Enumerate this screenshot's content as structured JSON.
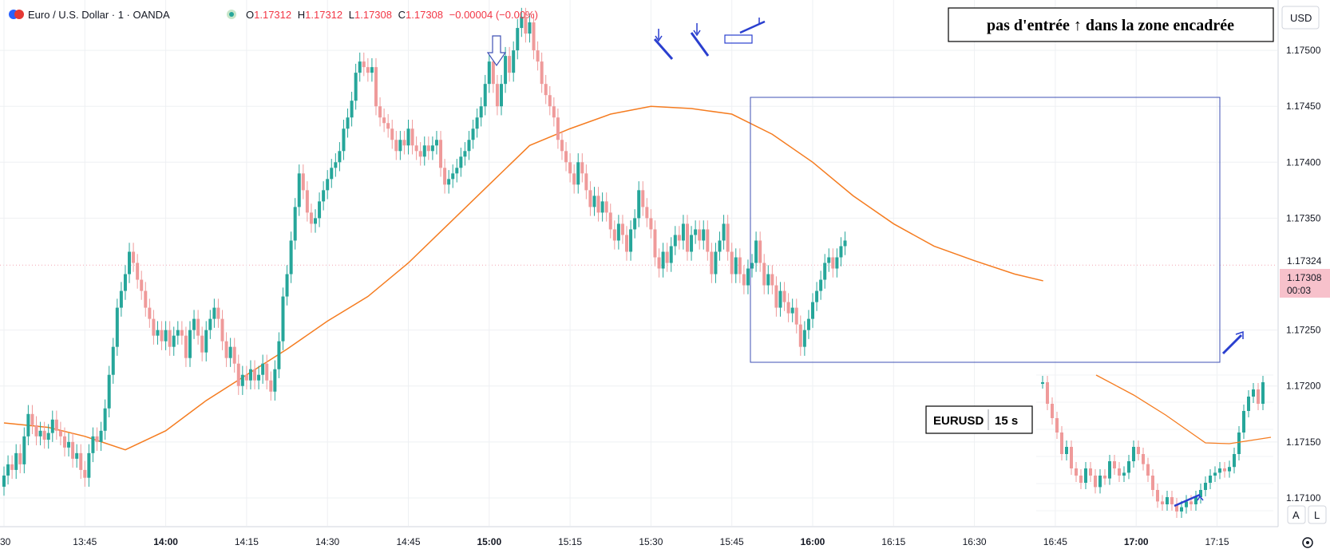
{
  "header": {
    "instrument": "Euro / U.S. Dollar · 1 · OANDA",
    "ohlc": {
      "o_label": "O",
      "o": "1.17312",
      "h_label": "H",
      "h": "1.17312",
      "l_label": "L",
      "l": "1.17308",
      "c_label": "C",
      "c": "1.17308",
      "change": "−0.00004 (−0.00%)"
    }
  },
  "toolbar": {
    "currency": "USD",
    "auto_label": "A",
    "log_label": "L"
  },
  "price_axis": {
    "ticks": [
      "1.17500",
      "1.17450",
      "1.17400",
      "1.17350",
      "1.17250",
      "1.17200",
      "1.17150",
      "1.17100"
    ],
    "tick_values": [
      1.175,
      1.1745,
      1.174,
      1.1735,
      1.1725,
      1.172,
      1.1715,
      1.171
    ],
    "bid_label": "1.17324",
    "last_label": "1.17308",
    "countdown": "00:03"
  },
  "time_axis": {
    "ticks": [
      {
        "label": ":30",
        "bold": false
      },
      {
        "label": "13:45",
        "bold": false
      },
      {
        "label": "14:00",
        "bold": true
      },
      {
        "label": "14:15",
        "bold": false
      },
      {
        "label": "14:30",
        "bold": false
      },
      {
        "label": "14:45",
        "bold": false
      },
      {
        "label": "15:00",
        "bold": true
      },
      {
        "label": "15:15",
        "bold": false
      },
      {
        "label": "15:30",
        "bold": false
      },
      {
        "label": "15:45",
        "bold": false
      },
      {
        "label": "16:00",
        "bold": true
      },
      {
        "label": "16:15",
        "bold": false
      },
      {
        "label": "16:30",
        "bold": false
      },
      {
        "label": "16:45",
        "bold": false
      },
      {
        "label": "17:00",
        "bold": true
      },
      {
        "label": "17:15",
        "bold": false
      }
    ]
  },
  "annotations": {
    "note": "pas d'entrée ↑ dans la zone encadrée",
    "inset_symbol": "EURUSD",
    "inset_interval": "15 s"
  },
  "colors": {
    "up": "#26a69a",
    "down": "#ef9a9a",
    "ma": "#f57c20",
    "box": "#3f51b5",
    "arrow": "#2a3fcf",
    "grid": "#eef0f3",
    "last_price_bg": "#f7c1cb",
    "bid_color": "#f4a6b4"
  },
  "chart_data": {
    "type": "candlestick",
    "x_labels": [
      ":30",
      "13:45",
      "14:00",
      "14:15",
      "14:30",
      "14:45",
      "15:00",
      "15:15",
      "15:30",
      "15:45",
      "16:00",
      "16:15",
      "16:30",
      "16:45",
      "17:00",
      "17:15"
    ],
    "ylim": [
      1.17075,
      1.17545
    ],
    "moving_average": [
      [
        0,
        1.17167
      ],
      [
        0.55,
        1.17163
      ],
      [
        1,
        1.17155
      ],
      [
        1.5,
        1.17143
      ],
      [
        2,
        1.1716
      ],
      [
        2.5,
        1.17187
      ],
      [
        3,
        1.1721
      ],
      [
        3.5,
        1.17233
      ],
      [
        4,
        1.17258
      ],
      [
        4.5,
        1.1728
      ],
      [
        5,
        1.1731
      ],
      [
        5.5,
        1.17345
      ],
      [
        6,
        1.1738
      ],
      [
        6.5,
        1.17415
      ],
      [
        7,
        1.1743
      ],
      [
        7.5,
        1.17443
      ],
      [
        8,
        1.1745
      ],
      [
        8.5,
        1.17448
      ],
      [
        9,
        1.17443
      ],
      [
        9.5,
        1.17425
      ],
      [
        10,
        1.174
      ],
      [
        10.5,
        1.1737
      ],
      [
        11,
        1.17345
      ],
      [
        11.5,
        1.17325
      ],
      [
        12,
        1.17312
      ],
      [
        12.5,
        1.173
      ],
      [
        12.85,
        1.17294
      ]
    ],
    "candles": [
      [
        0,
        1.1711,
        1.1712
      ],
      [
        0.05,
        1.1712,
        1.1713
      ],
      [
        0.1,
        1.1713,
        1.17125
      ],
      [
        0.15,
        1.17125,
        1.1714
      ],
      [
        0.2,
        1.1714,
        1.1713
      ],
      [
        0.25,
        1.1713,
        1.17155
      ],
      [
        0.3,
        1.17155,
        1.17175
      ],
      [
        0.35,
        1.17175,
        1.17165
      ],
      [
        0.4,
        1.17165,
        1.17155
      ],
      [
        0.45,
        1.17155,
        1.1716
      ],
      [
        0.5,
        1.1716,
        1.17152
      ],
      [
        0.55,
        1.17152,
        1.17158
      ],
      [
        0.6,
        1.17158,
        1.1717
      ],
      [
        0.65,
        1.1717,
        1.1716
      ],
      [
        0.7,
        1.1716,
        1.17155
      ],
      [
        0.75,
        1.17155,
        1.17145
      ],
      [
        0.8,
        1.17145,
        1.1715
      ],
      [
        0.85,
        1.1715,
        1.17135
      ],
      [
        0.9,
        1.17135,
        1.1714
      ],
      [
        0.95,
        1.1714,
        1.17125
      ],
      [
        1.0,
        1.17125,
        1.17118
      ],
      [
        1.05,
        1.17118,
        1.1714
      ],
      [
        1.1,
        1.1714,
        1.17155
      ],
      [
        1.15,
        1.17155,
        1.1715
      ],
      [
        1.2,
        1.1715,
        1.1716
      ],
      [
        1.25,
        1.1716,
        1.1718
      ],
      [
        1.3,
        1.1718,
        1.1721
      ],
      [
        1.35,
        1.1721,
        1.17235
      ],
      [
        1.4,
        1.17235,
        1.1727
      ],
      [
        1.45,
        1.1727,
        1.17285
      ],
      [
        1.5,
        1.17285,
        1.173
      ],
      [
        1.55,
        1.173,
        1.1732
      ],
      [
        1.6,
        1.1732,
        1.1731
      ],
      [
        1.65,
        1.1731,
        1.17295
      ],
      [
        1.7,
        1.17295,
        1.17285
      ],
      [
        1.75,
        1.17285,
        1.1727
      ],
      [
        1.8,
        1.1727,
        1.1726
      ],
      [
        1.85,
        1.1726,
        1.17245
      ],
      [
        1.9,
        1.17245,
        1.1725
      ],
      [
        1.95,
        1.1725,
        1.1724
      ],
      [
        2.0,
        1.1724,
        1.1725
      ],
      [
        2.05,
        1.1725,
        1.17235
      ],
      [
        2.1,
        1.17235,
        1.17245
      ],
      [
        2.15,
        1.17245,
        1.1725
      ],
      [
        2.2,
        1.1725,
        1.17245
      ],
      [
        2.25,
        1.17245,
        1.17225
      ],
      [
        2.3,
        1.17225,
        1.1725
      ],
      [
        2.35,
        1.1725,
        1.1726
      ],
      [
        2.4,
        1.1726,
        1.17245
      ],
      [
        2.45,
        1.17245,
        1.1723
      ],
      [
        2.5,
        1.1723,
        1.1725
      ],
      [
        2.55,
        1.1725,
        1.1726
      ],
      [
        2.6,
        1.1726,
        1.1727
      ],
      [
        2.65,
        1.1727,
        1.1726
      ],
      [
        2.7,
        1.1726,
        1.1724
      ],
      [
        2.75,
        1.1724,
        1.17225
      ],
      [
        2.8,
        1.17225,
        1.17235
      ],
      [
        2.85,
        1.17235,
        1.1722
      ],
      [
        2.9,
        1.1722,
        1.172
      ],
      [
        2.95,
        1.172,
        1.1721
      ],
      [
        3.0,
        1.1721,
        1.17205
      ],
      [
        3.05,
        1.17205,
        1.17215
      ],
      [
        3.1,
        1.17215,
        1.17205
      ],
      [
        3.15,
        1.17205,
        1.1721
      ],
      [
        3.2,
        1.1721,
        1.1722
      ],
      [
        3.25,
        1.1722,
        1.17205
      ],
      [
        3.3,
        1.17205,
        1.17195
      ],
      [
        3.35,
        1.17195,
        1.17215
      ],
      [
        3.4,
        1.17215,
        1.1724
      ],
      [
        3.45,
        1.1724,
        1.1728
      ],
      [
        3.5,
        1.1728,
        1.173
      ],
      [
        3.55,
        1.173,
        1.1733
      ],
      [
        3.6,
        1.1733,
        1.1736
      ],
      [
        3.65,
        1.1736,
        1.1739
      ],
      [
        3.7,
        1.1739,
        1.17375
      ],
      [
        3.75,
        1.17375,
        1.17355
      ],
      [
        3.8,
        1.17355,
        1.17345
      ],
      [
        3.85,
        1.17345,
        1.1735
      ],
      [
        3.9,
        1.1735,
        1.17365
      ],
      [
        3.95,
        1.17365,
        1.17375
      ],
      [
        4.0,
        1.17375,
        1.17385
      ],
      [
        4.05,
        1.17385,
        1.17395
      ],
      [
        4.1,
        1.17395,
        1.174
      ],
      [
        4.15,
        1.174,
        1.1741
      ],
      [
        4.2,
        1.1741,
        1.1743
      ],
      [
        4.25,
        1.1743,
        1.1744
      ],
      [
        4.3,
        1.1744,
        1.17455
      ],
      [
        4.35,
        1.17455,
        1.1748
      ],
      [
        4.4,
        1.1748,
        1.1749
      ],
      [
        4.45,
        1.1749,
        1.17485
      ],
      [
        4.5,
        1.17485,
        1.1748
      ],
      [
        4.55,
        1.1748,
        1.17485
      ],
      [
        4.6,
        1.17485,
        1.1745
      ],
      [
        4.65,
        1.1745,
        1.1744
      ],
      [
        4.7,
        1.1744,
        1.17435
      ],
      [
        4.75,
        1.17435,
        1.1743
      ],
      [
        4.8,
        1.1743,
        1.1742
      ],
      [
        4.85,
        1.1742,
        1.1741
      ],
      [
        4.9,
        1.1741,
        1.1742
      ],
      [
        4.95,
        1.1742,
        1.17415
      ],
      [
        5.0,
        1.17415,
        1.1743
      ],
      [
        5.05,
        1.1743,
        1.17415
      ],
      [
        5.1,
        1.17415,
        1.1741
      ],
      [
        5.15,
        1.1741,
        1.17405
      ],
      [
        5.2,
        1.17405,
        1.17415
      ],
      [
        5.25,
        1.17415,
        1.1741
      ],
      [
        5.3,
        1.1741,
        1.17415
      ],
      [
        5.35,
        1.17415,
        1.1742
      ],
      [
        5.4,
        1.1742,
        1.17395
      ],
      [
        5.45,
        1.17395,
        1.1738
      ],
      [
        5.5,
        1.1738,
        1.17385
      ],
      [
        5.55,
        1.17385,
        1.1739
      ],
      [
        5.6,
        1.1739,
        1.17395
      ],
      [
        5.65,
        1.17395,
        1.17405
      ],
      [
        5.7,
        1.17405,
        1.1741
      ],
      [
        5.75,
        1.1741,
        1.1742
      ],
      [
        5.8,
        1.1742,
        1.1743
      ],
      [
        5.85,
        1.1743,
        1.1744
      ],
      [
        5.9,
        1.1744,
        1.1745
      ],
      [
        5.95,
        1.1745,
        1.1747
      ],
      [
        6.0,
        1.1747,
        1.1749
      ],
      [
        6.05,
        1.1749,
        1.1747
      ],
      [
        6.1,
        1.1747,
        1.1745
      ],
      [
        6.15,
        1.1745,
        1.1747
      ],
      [
        6.2,
        1.1747,
        1.17495
      ],
      [
        6.25,
        1.17495,
        1.1748
      ],
      [
        6.3,
        1.1748,
        1.175
      ],
      [
        6.35,
        1.175,
        1.1752
      ],
      [
        6.4,
        1.1752,
        1.1753
      ],
      [
        6.45,
        1.1753,
        1.17515
      ],
      [
        6.5,
        1.17515,
        1.17525
      ],
      [
        6.55,
        1.17525,
        1.175
      ],
      [
        6.6,
        1.175,
        1.1749
      ],
      [
        6.65,
        1.1749,
        1.1747
      ],
      [
        6.7,
        1.1747,
        1.1746
      ],
      [
        6.75,
        1.1746,
        1.1745
      ],
      [
        6.8,
        1.1745,
        1.1744
      ],
      [
        6.85,
        1.1744,
        1.1742
      ],
      [
        6.9,
        1.1742,
        1.1741
      ],
      [
        6.95,
        1.1741,
        1.174
      ],
      [
        7.0,
        1.174,
        1.1739
      ],
      [
        7.05,
        1.1739,
        1.1738
      ],
      [
        7.1,
        1.1738,
        1.174
      ],
      [
        7.15,
        1.174,
        1.1739
      ],
      [
        7.2,
        1.1739,
        1.17375
      ],
      [
        7.25,
        1.17375,
        1.1736
      ],
      [
        7.3,
        1.1736,
        1.1737
      ],
      [
        7.35,
        1.1737,
        1.17355
      ],
      [
        7.4,
        1.17355,
        1.17365
      ],
      [
        7.45,
        1.17365,
        1.17355
      ],
      [
        7.5,
        1.17355,
        1.1734
      ],
      [
        7.55,
        1.1734,
        1.1733
      ],
      [
        7.6,
        1.1733,
        1.17345
      ],
      [
        7.65,
        1.17345,
        1.17335
      ],
      [
        7.7,
        1.17335,
        1.1732
      ],
      [
        7.75,
        1.1732,
        1.1734
      ],
      [
        7.8,
        1.1734,
        1.1735
      ],
      [
        7.85,
        1.1735,
        1.17375
      ],
      [
        7.9,
        1.17375,
        1.1736
      ],
      [
        7.95,
        1.1736,
        1.1735
      ],
      [
        8.0,
        1.1735,
        1.1734
      ],
      [
        8.05,
        1.1734,
        1.17315
      ],
      [
        8.1,
        1.17315,
        1.17305
      ],
      [
        8.15,
        1.17305,
        1.1732
      ],
      [
        8.2,
        1.1732,
        1.1731
      ],
      [
        8.25,
        1.1731,
        1.17325
      ],
      [
        8.3,
        1.17325,
        1.17335
      ],
      [
        8.35,
        1.17335,
        1.1733
      ],
      [
        8.4,
        1.1733,
        1.17345
      ],
      [
        8.45,
        1.17345,
        1.1732
      ],
      [
        8.5,
        1.1732,
        1.17335
      ],
      [
        8.55,
        1.17335,
        1.1734
      ],
      [
        8.6,
        1.1734,
        1.1733
      ],
      [
        8.65,
        1.1733,
        1.1734
      ],
      [
        8.7,
        1.1734,
        1.1732
      ],
      [
        8.75,
        1.1732,
        1.173
      ],
      [
        8.8,
        1.173,
        1.1732
      ],
      [
        8.85,
        1.1732,
        1.1733
      ],
      [
        8.9,
        1.1733,
        1.17345
      ],
      [
        8.95,
        1.17345,
        1.1732
      ],
      [
        9.0,
        1.1732,
        1.173
      ],
      [
        9.05,
        1.173,
        1.17315
      ],
      [
        9.1,
        1.17315,
        1.173
      ],
      [
        9.15,
        1.173,
        1.1729
      ],
      [
        9.2,
        1.1729,
        1.17305
      ],
      [
        9.25,
        1.17305,
        1.1731
      ],
      [
        9.3,
        1.1731,
        1.1733
      ],
      [
        9.35,
        1.1733,
        1.1731
      ],
      [
        9.4,
        1.1731,
        1.1729
      ],
      [
        9.45,
        1.1729,
        1.173
      ],
      [
        9.5,
        1.173,
        1.1729
      ],
      [
        9.55,
        1.1729,
        1.1727
      ],
      [
        9.6,
        1.1727,
        1.17285
      ],
      [
        9.65,
        1.17285,
        1.17275
      ],
      [
        9.7,
        1.17275,
        1.17265
      ],
      [
        9.75,
        1.17265,
        1.1727
      ],
      [
        9.8,
        1.1727,
        1.17255
      ],
      [
        9.85,
        1.17255,
        1.17235
      ],
      [
        9.9,
        1.17235,
        1.1725
      ],
      [
        9.95,
        1.1725,
        1.1726
      ],
      [
        10.0,
        1.1726,
        1.17275
      ],
      [
        10.05,
        1.17275,
        1.17285
      ],
      [
        10.1,
        1.17285,
        1.17295
      ],
      [
        10.15,
        1.17295,
        1.1731
      ],
      [
        10.2,
        1.1731,
        1.17315
      ],
      [
        10.25,
        1.17315,
        1.17305
      ],
      [
        10.3,
        1.17305,
        1.17315
      ],
      [
        10.35,
        1.17315,
        1.17325
      ],
      [
        10.4,
        1.17325,
        1.1733
      ]
    ]
  }
}
